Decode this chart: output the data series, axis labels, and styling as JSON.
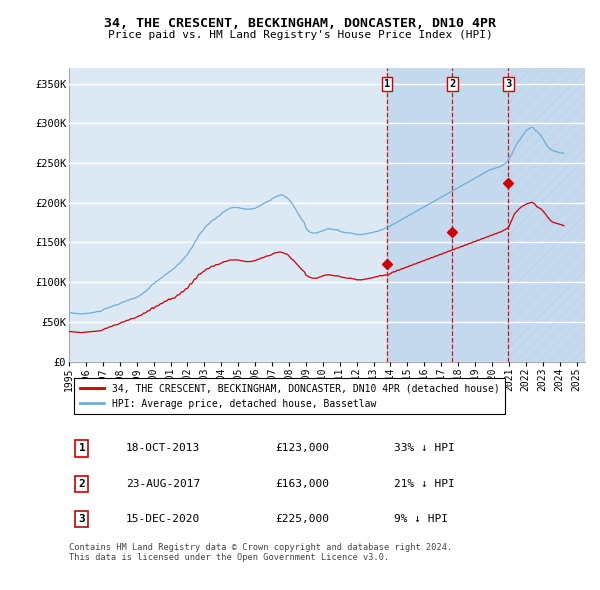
{
  "title": "34, THE CRESCENT, BECKINGHAM, DONCASTER, DN10 4PR",
  "subtitle": "Price paid vs. HM Land Registry's House Price Index (HPI)",
  "ylabel_ticks": [
    "£0",
    "£50K",
    "£100K",
    "£150K",
    "£200K",
    "£250K",
    "£300K",
    "£350K"
  ],
  "ytick_values": [
    0,
    50000,
    100000,
    150000,
    200000,
    250000,
    300000,
    350000
  ],
  "ylim": [
    0,
    370000
  ],
  "xlim_start": 1995.0,
  "xlim_end": 2025.5,
  "background_color": "#ffffff",
  "plot_bg_color": "#dce9f5",
  "highlight_bg_color": "#c5d9ee",
  "hatch_color": "#b0c8e0",
  "grid_color": "#ffffff",
  "hpi_color": "#6baed6",
  "price_color": "#cc0000",
  "sale_line_color": "#cc0000",
  "legend_label_price": "34, THE CRESCENT, BECKINGHAM, DONCASTER, DN10 4PR (detached house)",
  "legend_label_hpi": "HPI: Average price, detached house, Bassetlaw",
  "sales": [
    {
      "label": "1",
      "date_x": 2013.8,
      "price": 123000,
      "pct": "33% ↓ HPI",
      "date_str": "18-OCT-2013",
      "price_str": "£123,000"
    },
    {
      "label": "2",
      "date_x": 2017.65,
      "price": 163000,
      "pct": "21% ↓ HPI",
      "date_str": "23-AUG-2017",
      "price_str": "£163,000"
    },
    {
      "label": "3",
      "date_x": 2020.96,
      "price": 225000,
      "pct": "9% ↓ HPI",
      "date_str": "15-DEC-2020",
      "price_str": "£225,000"
    }
  ],
  "footnote": "Contains HM Land Registry data © Crown copyright and database right 2024.\nThis data is licensed under the Open Government Licence v3.0.",
  "hpi_data_x": [
    1995.0,
    1995.083,
    1995.167,
    1995.25,
    1995.333,
    1995.417,
    1995.5,
    1995.583,
    1995.667,
    1995.75,
    1995.833,
    1995.917,
    1996.0,
    1996.083,
    1996.167,
    1996.25,
    1996.333,
    1996.417,
    1996.5,
    1996.583,
    1996.667,
    1996.75,
    1996.833,
    1996.917,
    1997.0,
    1997.083,
    1997.167,
    1997.25,
    1997.333,
    1997.417,
    1997.5,
    1997.583,
    1997.667,
    1997.75,
    1997.833,
    1997.917,
    1998.0,
    1998.083,
    1998.167,
    1998.25,
    1998.333,
    1998.417,
    1998.5,
    1998.583,
    1998.667,
    1998.75,
    1998.833,
    1998.917,
    1999.0,
    1999.083,
    1999.167,
    1999.25,
    1999.333,
    1999.417,
    1999.5,
    1999.583,
    1999.667,
    1999.75,
    1999.833,
    1999.917,
    2000.0,
    2000.083,
    2000.167,
    2000.25,
    2000.333,
    2000.417,
    2000.5,
    2000.583,
    2000.667,
    2000.75,
    2000.833,
    2000.917,
    2001.0,
    2001.083,
    2001.167,
    2001.25,
    2001.333,
    2001.417,
    2001.5,
    2001.583,
    2001.667,
    2001.75,
    2001.833,
    2001.917,
    2002.0,
    2002.083,
    2002.167,
    2002.25,
    2002.333,
    2002.417,
    2002.5,
    2002.583,
    2002.667,
    2002.75,
    2002.833,
    2002.917,
    2003.0,
    2003.083,
    2003.167,
    2003.25,
    2003.333,
    2003.417,
    2003.5,
    2003.583,
    2003.667,
    2003.75,
    2003.833,
    2003.917,
    2004.0,
    2004.083,
    2004.167,
    2004.25,
    2004.333,
    2004.417,
    2004.5,
    2004.583,
    2004.667,
    2004.75,
    2004.833,
    2004.917,
    2005.0,
    2005.083,
    2005.167,
    2005.25,
    2005.333,
    2005.417,
    2005.5,
    2005.583,
    2005.667,
    2005.75,
    2005.833,
    2005.917,
    2006.0,
    2006.083,
    2006.167,
    2006.25,
    2006.333,
    2006.417,
    2006.5,
    2006.583,
    2006.667,
    2006.75,
    2006.833,
    2006.917,
    2007.0,
    2007.083,
    2007.167,
    2007.25,
    2007.333,
    2007.417,
    2007.5,
    2007.583,
    2007.667,
    2007.75,
    2007.833,
    2007.917,
    2008.0,
    2008.083,
    2008.167,
    2008.25,
    2008.333,
    2008.417,
    2008.5,
    2008.583,
    2008.667,
    2008.75,
    2008.833,
    2008.917,
    2009.0,
    2009.083,
    2009.167,
    2009.25,
    2009.333,
    2009.417,
    2009.5,
    2009.583,
    2009.667,
    2009.75,
    2009.833,
    2009.917,
    2010.0,
    2010.083,
    2010.167,
    2010.25,
    2010.333,
    2010.417,
    2010.5,
    2010.583,
    2010.667,
    2010.75,
    2010.833,
    2010.917,
    2011.0,
    2011.083,
    2011.167,
    2011.25,
    2011.333,
    2011.417,
    2011.5,
    2011.583,
    2011.667,
    2011.75,
    2011.833,
    2011.917,
    2012.0,
    2012.083,
    2012.167,
    2012.25,
    2012.333,
    2012.417,
    2012.5,
    2012.583,
    2012.667,
    2012.75,
    2012.833,
    2012.917,
    2013.0,
    2013.083,
    2013.167,
    2013.25,
    2013.333,
    2013.417,
    2013.5,
    2013.583,
    2013.667,
    2013.75,
    2013.833,
    2013.917,
    2014.0,
    2014.083,
    2014.167,
    2014.25,
    2014.333,
    2014.417,
    2014.5,
    2014.583,
    2014.667,
    2014.75,
    2014.833,
    2014.917,
    2015.0,
    2015.083,
    2015.167,
    2015.25,
    2015.333,
    2015.417,
    2015.5,
    2015.583,
    2015.667,
    2015.75,
    2015.833,
    2015.917,
    2016.0,
    2016.083,
    2016.167,
    2016.25,
    2016.333,
    2016.417,
    2016.5,
    2016.583,
    2016.667,
    2016.75,
    2016.833,
    2016.917,
    2017.0,
    2017.083,
    2017.167,
    2017.25,
    2017.333,
    2017.417,
    2017.5,
    2017.583,
    2017.667,
    2017.75,
    2017.833,
    2017.917,
    2018.0,
    2018.083,
    2018.167,
    2018.25,
    2018.333,
    2018.417,
    2018.5,
    2018.583,
    2018.667,
    2018.75,
    2018.833,
    2018.917,
    2019.0,
    2019.083,
    2019.167,
    2019.25,
    2019.333,
    2019.417,
    2019.5,
    2019.583,
    2019.667,
    2019.75,
    2019.833,
    2019.917,
    2020.0,
    2020.083,
    2020.167,
    2020.25,
    2020.333,
    2020.417,
    2020.5,
    2020.583,
    2020.667,
    2020.75,
    2020.833,
    2020.917,
    2021.0,
    2021.083,
    2021.167,
    2021.25,
    2021.333,
    2021.417,
    2021.5,
    2021.583,
    2021.667,
    2021.75,
    2021.833,
    2021.917,
    2022.0,
    2022.083,
    2022.167,
    2022.25,
    2022.333,
    2022.417,
    2022.5,
    2022.583,
    2022.667,
    2022.75,
    2022.833,
    2022.917,
    2023.0,
    2023.083,
    2023.167,
    2023.25,
    2023.333,
    2023.417,
    2023.5,
    2023.583,
    2023.667,
    2023.75,
    2023.833,
    2023.917,
    2024.0,
    2024.083,
    2024.167,
    2024.25
  ],
  "hpi_data_y": [
    62000,
    61500,
    61200,
    61000,
    60800,
    60600,
    60500,
    60300,
    60100,
    60000,
    60200,
    60400,
    60500,
    60700,
    61000,
    61000,
    61500,
    62000,
    62000,
    62500,
    63000,
    63000,
    63200,
    63500,
    65000,
    66000,
    67000,
    67000,
    68000,
    69000,
    69000,
    70000,
    71000,
    71000,
    71500,
    72000,
    73000,
    74000,
    75000,
    75000,
    76000,
    77000,
    77000,
    78000,
    79000,
    79000,
    79500,
    80000,
    81000,
    82000,
    83000,
    84000,
    85500,
    87000,
    88000,
    89500,
    91000,
    93000,
    95000,
    97000,
    98000,
    99500,
    101000,
    102000,
    103500,
    105000,
    106000,
    107500,
    109000,
    110000,
    111500,
    113000,
    114000,
    115500,
    117000,
    118000,
    120000,
    122000,
    123000,
    125000,
    127000,
    129000,
    131000,
    133000,
    135000,
    138000,
    141000,
    143000,
    146000,
    150000,
    152000,
    155000,
    159000,
    161000,
    163000,
    165000,
    168000,
    170000,
    172000,
    173000,
    175000,
    177000,
    178000,
    179000,
    180000,
    182000,
    183000,
    184000,
    186000,
    188000,
    189000,
    190000,
    191000,
    192000,
    193000,
    193500,
    194000,
    194000,
    194000,
    194000,
    194000,
    193500,
    193000,
    193000,
    192500,
    192000,
    192000,
    192000,
    192000,
    192000,
    192500,
    193000,
    193000,
    194000,
    195000,
    196000,
    197000,
    198000,
    199000,
    200000,
    201000,
    202000,
    202500,
    203000,
    205000,
    206000,
    207000,
    208000,
    208500,
    209000,
    210000,
    210000,
    209500,
    208000,
    207000,
    206000,
    204000,
    202000,
    200000,
    197000,
    194000,
    191000,
    188000,
    185000,
    182000,
    179000,
    177000,
    175000,
    168000,
    166000,
    164000,
    163000,
    162500,
    162000,
    162000,
    162000,
    162000,
    163000,
    163500,
    164000,
    165000,
    165500,
    166000,
    167000,
    167500,
    167000,
    167000,
    166500,
    166000,
    166000,
    166000,
    166000,
    164000,
    163500,
    163000,
    163000,
    162500,
    162000,
    162000,
    162000,
    162000,
    161500,
    161000,
    161000,
    160000,
    160000,
    160000,
    160000,
    160000,
    160500,
    161000,
    161000,
    161500,
    162000,
    162000,
    162500,
    163000,
    163500,
    164000,
    164000,
    165000,
    166000,
    166000,
    167000,
    168000,
    168500,
    169000,
    169500,
    171000,
    172000,
    173000,
    174000,
    175000,
    176000,
    177000,
    178000,
    179000,
    180000,
    181000,
    182000,
    183000,
    184000,
    185000,
    186000,
    187000,
    188000,
    189000,
    190000,
    191000,
    192000,
    193000,
    194000,
    195000,
    196000,
    197000,
    198000,
    199000,
    200000,
    201000,
    202000,
    203000,
    204000,
    205000,
    206000,
    207000,
    208000,
    209000,
    210000,
    211000,
    212000,
    213000,
    214000,
    215000,
    216000,
    217000,
    218000,
    219000,
    220000,
    221000,
    222000,
    223000,
    224000,
    225000,
    226000,
    227000,
    228000,
    229000,
    230000,
    231000,
    232000,
    233000,
    234000,
    235000,
    236000,
    237000,
    238000,
    239000,
    240000,
    241000,
    242000,
    242000,
    243000,
    243500,
    244000,
    244500,
    245000,
    246000,
    247000,
    248000,
    249000,
    250000,
    252000,
    255000,
    258000,
    261000,
    265000,
    269000,
    272000,
    275000,
    278000,
    280000,
    283000,
    285000,
    287000,
    290000,
    292000,
    293000,
    294000,
    295000,
    295000,
    293000,
    291000,
    290000,
    288000,
    286000,
    284000,
    281000,
    278000,
    275000,
    272000,
    270000,
    268000,
    267000,
    266000,
    265000,
    265000,
    264000,
    264000,
    263000,
    263000,
    263000,
    262000
  ],
  "price_line_x": [
    1995.0,
    1995.083,
    1995.167,
    1995.25,
    1995.333,
    1995.417,
    1995.5,
    1995.583,
    1995.667,
    1995.75,
    1995.833,
    1995.917,
    1996.0,
    1996.083,
    1996.167,
    1996.25,
    1996.333,
    1996.417,
    1996.5,
    1996.583,
    1996.667,
    1996.75,
    1996.833,
    1996.917,
    1997.0,
    1997.083,
    1997.167,
    1997.25,
    1997.333,
    1997.417,
    1997.5,
    1997.583,
    1997.667,
    1997.75,
    1997.833,
    1997.917,
    1998.0,
    1998.083,
    1998.167,
    1998.25,
    1998.333,
    1998.417,
    1998.5,
    1998.583,
    1998.667,
    1998.75,
    1998.833,
    1998.917,
    1999.0,
    1999.083,
    1999.167,
    1999.25,
    1999.333,
    1999.417,
    1999.5,
    1999.583,
    1999.667,
    1999.75,
    1999.833,
    1999.917,
    2000.0,
    2000.083,
    2000.167,
    2000.25,
    2000.333,
    2000.417,
    2000.5,
    2000.583,
    2000.667,
    2000.75,
    2000.833,
    2000.917,
    2001.0,
    2001.083,
    2001.167,
    2001.25,
    2001.333,
    2001.417,
    2001.5,
    2001.583,
    2001.667,
    2001.75,
    2001.833,
    2001.917,
    2002.0,
    2002.083,
    2002.167,
    2002.25,
    2002.333,
    2002.417,
    2002.5,
    2002.583,
    2002.667,
    2002.75,
    2002.833,
    2002.917,
    2003.0,
    2003.083,
    2003.167,
    2003.25,
    2003.333,
    2003.417,
    2003.5,
    2003.583,
    2003.667,
    2003.75,
    2003.833,
    2003.917,
    2004.0,
    2004.083,
    2004.167,
    2004.25,
    2004.333,
    2004.417,
    2004.5,
    2004.583,
    2004.667,
    2004.75,
    2004.833,
    2004.917,
    2005.0,
    2005.083,
    2005.167,
    2005.25,
    2005.333,
    2005.417,
    2005.5,
    2005.583,
    2005.667,
    2005.75,
    2005.833,
    2005.917,
    2006.0,
    2006.083,
    2006.167,
    2006.25,
    2006.333,
    2006.417,
    2006.5,
    2006.583,
    2006.667,
    2006.75,
    2006.833,
    2006.917,
    2007.0,
    2007.083,
    2007.167,
    2007.25,
    2007.333,
    2007.417,
    2007.5,
    2007.583,
    2007.667,
    2007.75,
    2007.833,
    2007.917,
    2008.0,
    2008.083,
    2008.167,
    2008.25,
    2008.333,
    2008.417,
    2008.5,
    2008.583,
    2008.667,
    2008.75,
    2008.833,
    2008.917,
    2009.0,
    2009.083,
    2009.167,
    2009.25,
    2009.333,
    2009.417,
    2009.5,
    2009.583,
    2009.667,
    2009.75,
    2009.833,
    2009.917,
    2010.0,
    2010.083,
    2010.167,
    2010.25,
    2010.333,
    2010.417,
    2010.5,
    2010.583,
    2010.667,
    2010.75,
    2010.833,
    2010.917,
    2011.0,
    2011.083,
    2011.167,
    2011.25,
    2011.333,
    2011.417,
    2011.5,
    2011.583,
    2011.667,
    2011.75,
    2011.833,
    2011.917,
    2012.0,
    2012.083,
    2012.167,
    2012.25,
    2012.333,
    2012.417,
    2012.5,
    2012.583,
    2012.667,
    2012.75,
    2012.833,
    2012.917,
    2013.0,
    2013.083,
    2013.167,
    2013.25,
    2013.333,
    2013.417,
    2013.5,
    2013.583,
    2013.667,
    2013.75,
    2013.833,
    2013.917,
    2014.0,
    2014.083,
    2014.167,
    2014.25,
    2014.333,
    2014.417,
    2014.5,
    2014.583,
    2014.667,
    2014.75,
    2014.833,
    2014.917,
    2015.0,
    2015.083,
    2015.167,
    2015.25,
    2015.333,
    2015.417,
    2015.5,
    2015.583,
    2015.667,
    2015.75,
    2015.833,
    2015.917,
    2016.0,
    2016.083,
    2016.167,
    2016.25,
    2016.333,
    2016.417,
    2016.5,
    2016.583,
    2016.667,
    2016.75,
    2016.833,
    2016.917,
    2017.0,
    2017.083,
    2017.167,
    2017.25,
    2017.333,
    2017.417,
    2017.5,
    2017.583,
    2017.667,
    2017.75,
    2017.833,
    2017.917,
    2018.0,
    2018.083,
    2018.167,
    2018.25,
    2018.333,
    2018.417,
    2018.5,
    2018.583,
    2018.667,
    2018.75,
    2018.833,
    2018.917,
    2019.0,
    2019.083,
    2019.167,
    2019.25,
    2019.333,
    2019.417,
    2019.5,
    2019.583,
    2019.667,
    2019.75,
    2019.833,
    2019.917,
    2020.0,
    2020.083,
    2020.167,
    2020.25,
    2020.333,
    2020.417,
    2020.5,
    2020.583,
    2020.667,
    2020.75,
    2020.833,
    2020.917,
    2021.0,
    2021.083,
    2021.167,
    2021.25,
    2021.333,
    2021.417,
    2021.5,
    2021.583,
    2021.667,
    2021.75,
    2021.833,
    2021.917,
    2022.0,
    2022.083,
    2022.167,
    2022.25,
    2022.333,
    2022.417,
    2022.5,
    2022.583,
    2022.667,
    2022.75,
    2022.833,
    2022.917,
    2023.0,
    2023.083,
    2023.167,
    2023.25,
    2023.333,
    2023.417,
    2023.5,
    2023.583,
    2023.667,
    2023.75,
    2023.833,
    2023.917,
    2024.0,
    2024.083,
    2024.167,
    2024.25
  ],
  "price_line_y": [
    38000,
    37800,
    37600,
    37500,
    37300,
    37100,
    37000,
    36800,
    36600,
    36500,
    36700,
    36900,
    37000,
    37200,
    37500,
    37500,
    37800,
    38000,
    38000,
    38300,
    38500,
    38500,
    38700,
    39000,
    40000,
    41000,
    42000,
    42000,
    43000,
    44000,
    44000,
    45000,
    46000,
    46000,
    46500,
    47000,
    48000,
    49000,
    50000,
    50000,
    51000,
    52000,
    52000,
    53000,
    54000,
    54000,
    54500,
    55000,
    56000,
    57000,
    58000,
    58000,
    59500,
    61000,
    61000,
    62500,
    64000,
    64000,
    66000,
    68000,
    67000,
    68500,
    70000,
    70000,
    71500,
    73000,
    73000,
    74500,
    76000,
    76000,
    77500,
    79000,
    78000,
    79500,
    80000,
    80000,
    82000,
    84000,
    84000,
    86000,
    88000,
    88000,
    90000,
    92000,
    92000,
    95000,
    98000,
    98000,
    101000,
    104000,
    104000,
    107000,
    110000,
    110000,
    111500,
    113000,
    114000,
    116000,
    117000,
    117000,
    118500,
    120000,
    120000,
    120500,
    122000,
    122000,
    122500,
    123000,
    124000,
    125000,
    126000,
    126000,
    126500,
    127000,
    128000,
    128000,
    128000,
    128000,
    128000,
    128000,
    128000,
    127500,
    127000,
    127000,
    126500,
    126000,
    126000,
    126000,
    126000,
    126000,
    126500,
    127000,
    127000,
    128000,
    129000,
    129000,
    130000,
    131000,
    131000,
    132000,
    133000,
    133000,
    133500,
    134000,
    135000,
    136000,
    137000,
    137000,
    137500,
    138000,
    138000,
    137500,
    137000,
    136000,
    135500,
    135000,
    133000,
    131000,
    129000,
    128000,
    126000,
    124000,
    122000,
    120000,
    118000,
    116000,
    114500,
    113000,
    109000,
    108000,
    107000,
    106000,
    105500,
    105000,
    105000,
    105000,
    105000,
    106000,
    106500,
    107000,
    108000,
    108500,
    109000,
    109000,
    109500,
    109000,
    109000,
    108500,
    108000,
    108000,
    108000,
    108000,
    107000,
    106500,
    106000,
    106000,
    105500,
    105000,
    105000,
    105000,
    105000,
    104500,
    104000,
    104000,
    103000,
    103000,
    103000,
    103000,
    103000,
    103500,
    104000,
    104000,
    104500,
    105000,
    105000,
    105500,
    106000,
    106500,
    107000,
    107000,
    108000,
    108500,
    108000,
    108500,
    109000,
    109000,
    109000,
    109500,
    111000,
    112000,
    113000,
    113000,
    114000,
    115000,
    115000,
    116000,
    117000,
    117000,
    118000,
    119000,
    119000,
    120000,
    121000,
    121000,
    122000,
    123000,
    123000,
    124000,
    125000,
    125000,
    126000,
    127000,
    127000,
    128000,
    129000,
    129000,
    130000,
    131000,
    131000,
    132000,
    133000,
    133000,
    134000,
    135000,
    135000,
    136000,
    137000,
    137000,
    138000,
    139000,
    139000,
    140000,
    141000,
    141000,
    142000,
    143000,
    143000,
    144000,
    145000,
    145000,
    146000,
    147000,
    147000,
    148000,
    149000,
    149000,
    150000,
    151000,
    151000,
    152000,
    153000,
    153000,
    154000,
    155000,
    155000,
    156000,
    157000,
    157000,
    158000,
    159000,
    159000,
    160000,
    161000,
    161000,
    162000,
    163000,
    163000,
    164000,
    165000,
    166000,
    167000,
    168000,
    170000,
    174000,
    178000,
    182000,
    186000,
    188000,
    190000,
    192000,
    193500,
    195000,
    196000,
    197000,
    198000,
    199000,
    199500,
    200000,
    200500,
    200000,
    199000,
    197000,
    195000,
    194000,
    193000,
    192000,
    190000,
    188000,
    186000,
    183000,
    181000,
    179000,
    177000,
    176000,
    175000,
    174500,
    174000,
    173500,
    173000,
    172500,
    172000,
    171000
  ]
}
